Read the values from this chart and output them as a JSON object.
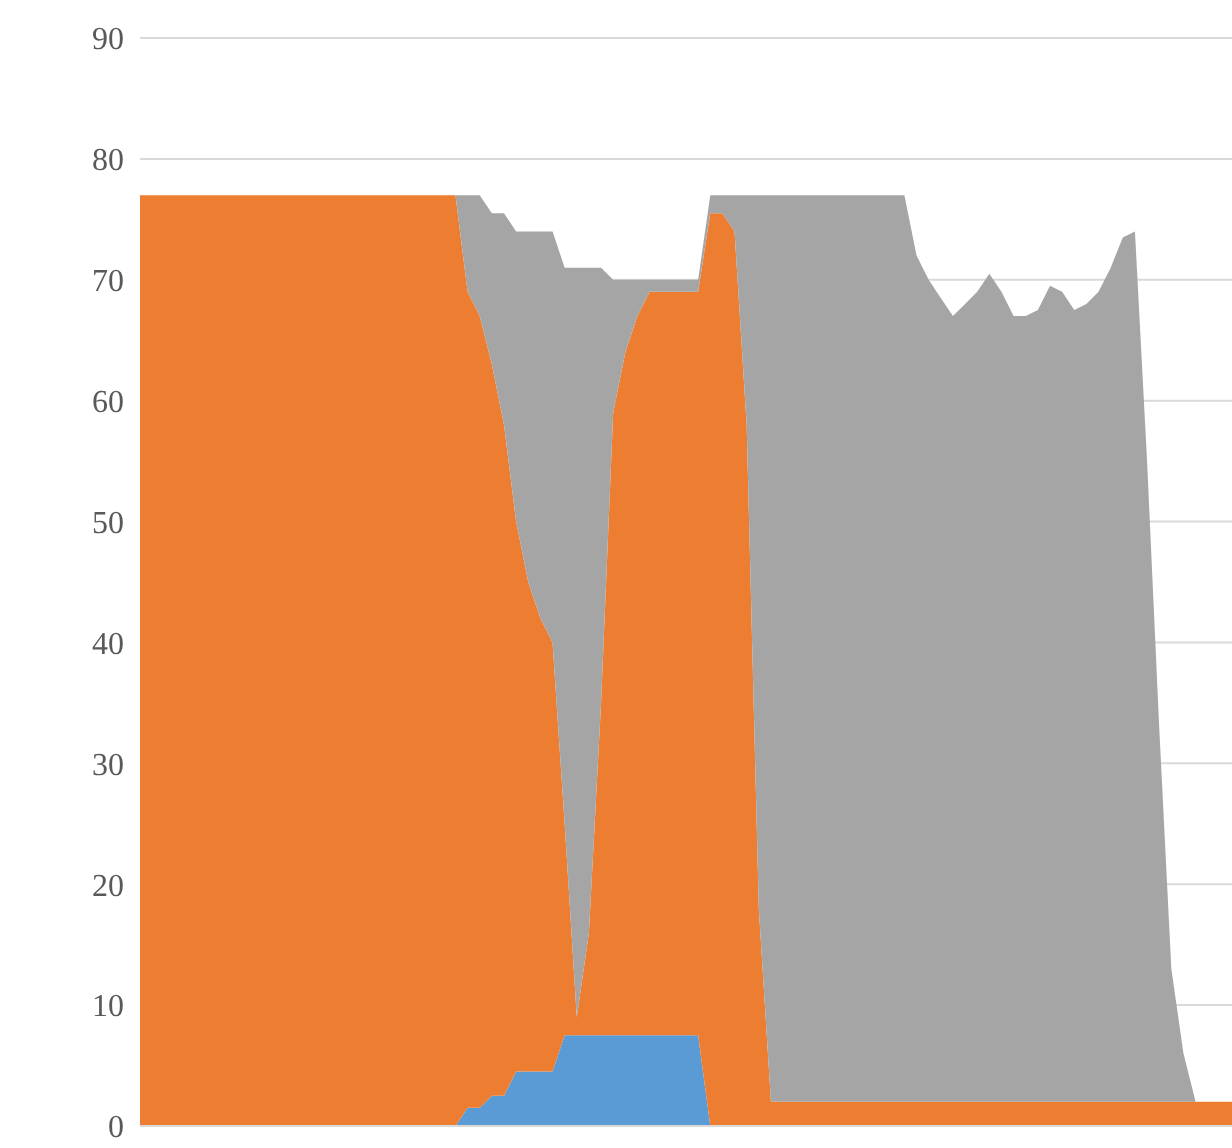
{
  "chart_data": {
    "type": "area",
    "stacked": true,
    "categories": [
      null,
      null,
      null,
      null,
      null,
      null,
      null,
      null,
      null,
      null,
      null,
      null,
      null,
      null,
      null,
      null,
      null,
      null,
      null,
      null,
      null,
      null,
      null,
      null,
      null,
      null,
      null,
      null,
      null,
      null,
      null,
      null,
      null,
      null,
      null,
      null,
      null,
      null,
      null,
      null,
      null,
      null,
      null,
      null,
      null,
      null,
      null,
      null,
      null,
      null,
      null,
      null,
      null,
      null,
      null,
      null,
      null,
      null,
      null,
      null,
      null,
      null,
      null,
      null,
      null,
      null,
      null,
      null,
      null,
      null,
      null,
      null,
      null,
      null,
      null,
      null,
      null,
      null,
      null,
      null,
      null,
      null,
      null,
      null,
      null,
      null,
      null,
      null,
      null,
      null,
      null
    ],
    "series": [
      {
        "color": "#5b9bd5",
        "values": [
          0,
          0,
          0,
          0,
          0,
          0,
          0,
          0,
          0,
          0,
          0,
          0,
          0,
          0,
          0,
          0,
          0,
          0,
          0,
          0,
          0,
          0,
          0,
          0,
          0,
          0,
          0,
          1.5,
          1.5,
          2.5,
          2.5,
          4.5,
          4.5,
          4.5,
          4.5,
          7.5,
          7.5,
          7.5,
          7.5,
          7.5,
          7.5,
          7.5,
          7.5,
          7.5,
          7.5,
          7.5,
          7.5,
          0,
          0,
          0,
          0,
          0,
          0,
          0,
          0,
          0,
          0,
          0,
          0,
          0,
          0,
          0,
          0,
          0,
          0,
          0,
          0,
          0,
          0,
          0,
          0,
          0,
          0,
          0,
          0,
          0,
          0,
          0,
          0,
          0,
          0,
          0,
          0,
          0,
          0,
          0,
          0,
          0,
          0,
          0,
          0
        ]
      },
      {
        "color": "#ed7d31",
        "values": [
          77,
          77,
          77,
          77,
          77,
          77,
          77,
          77,
          77,
          77,
          77,
          77,
          77,
          77,
          77,
          77,
          77,
          77,
          77,
          77,
          77,
          77,
          77,
          77,
          77,
          77,
          77,
          67.5,
          65.5,
          60.5,
          55.5,
          45.5,
          40.5,
          37.5,
          35.5,
          17.5,
          1.5,
          8.5,
          27.5,
          51.5,
          56.5,
          59.5,
          61.5,
          61.5,
          61.5,
          61.5,
          61.5,
          75.5,
          75.5,
          74,
          58,
          18,
          2,
          2,
          2,
          2,
          2,
          2,
          2,
          2,
          2,
          2,
          2,
          2,
          2,
          2,
          2,
          2,
          2,
          2,
          2,
          2,
          2,
          2,
          2,
          2,
          2,
          2,
          2,
          2,
          2,
          2,
          2,
          2,
          2,
          2,
          2,
          2,
          2,
          2,
          2
        ]
      },
      {
        "color": "#a5a5a5",
        "values": [
          0,
          0,
          0,
          0,
          0,
          0,
          0,
          0,
          0,
          0,
          0,
          0,
          0,
          0,
          0,
          0,
          0,
          0,
          0,
          0,
          0,
          0,
          0,
          0,
          0,
          0,
          0,
          8,
          10,
          12.5,
          17.5,
          24,
          29,
          32,
          34,
          46,
          62,
          55,
          36,
          11,
          6,
          3,
          1,
          1,
          1,
          1,
          1,
          1.5,
          1.5,
          3,
          19,
          59,
          75,
          75,
          75,
          75,
          75,
          75,
          75,
          75,
          75,
          75,
          75,
          75,
          70,
          68,
          66.5,
          65,
          66,
          67,
          68.5,
          67,
          65,
          65,
          65.5,
          67.5,
          67,
          65.5,
          66,
          67,
          69,
          71.5,
          72,
          53,
          31,
          11,
          4,
          0,
          0,
          0,
          0
        ]
      }
    ],
    "ylim": [
      0,
      90
    ],
    "yticks": [
      0,
      10,
      20,
      30,
      40,
      50,
      60,
      70,
      80,
      90
    ],
    "grid": "y",
    "tick_labels": "y"
  }
}
